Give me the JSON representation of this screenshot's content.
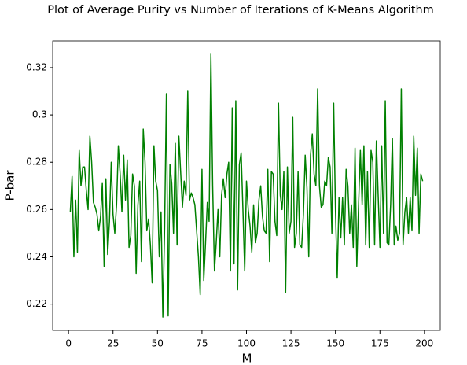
{
  "chart_data": {
    "type": "line",
    "title": "Plot of Average Purity vs Number of Iterations of K-Means Algorithm",
    "x_label": "M",
    "y_label": "P-bar",
    "x": [
      1,
      2,
      3,
      4,
      5,
      6,
      7,
      8,
      9,
      10,
      11,
      12,
      13,
      14,
      15,
      16,
      17,
      18,
      19,
      20,
      21,
      22,
      23,
      24,
      25,
      26,
      27,
      28,
      29,
      30,
      31,
      32,
      33,
      34,
      35,
      36,
      37,
      38,
      39,
      40,
      41,
      42,
      43,
      44,
      45,
      46,
      47,
      48,
      49,
      50,
      51,
      52,
      53,
      54,
      55,
      56,
      57,
      58,
      59,
      60,
      61,
      62,
      63,
      64,
      65,
      66,
      67,
      68,
      69,
      70,
      71,
      72,
      73,
      74,
      75,
      76,
      77,
      78,
      79,
      80,
      81,
      82,
      83,
      84,
      85,
      86,
      87,
      88,
      89,
      90,
      91,
      92,
      93,
      94,
      95,
      96,
      97,
      98,
      99,
      100,
      101,
      102,
      103,
      104,
      105,
      106,
      107,
      108,
      109,
      110,
      111,
      112,
      113,
      114,
      115,
      116,
      117,
      118,
      119,
      120,
      121,
      122,
      123,
      124,
      125,
      126,
      127,
      128,
      129,
      130,
      131,
      132,
      133,
      134,
      135,
      136,
      137,
      138,
      139,
      140,
      141,
      142,
      143,
      144,
      145,
      146,
      147,
      148,
      149,
      150,
      151,
      152,
      153,
      154,
      155,
      156,
      157,
      158,
      159,
      160,
      161,
      162,
      163,
      164,
      165,
      166,
      167,
      168,
      169,
      170,
      171,
      172,
      173,
      174,
      175,
      176,
      177,
      178,
      179,
      180,
      181,
      182,
      183,
      184,
      185,
      186,
      187,
      188,
      189,
      190,
      191,
      192,
      193,
      194,
      195,
      196,
      197,
      198,
      199
    ],
    "series": [
      {
        "name": "P-bar",
        "color": "#008000",
        "values": [
          0.259,
          0.274,
          0.24,
          0.264,
          0.242,
          0.285,
          0.27,
          0.278,
          0.278,
          0.268,
          0.26,
          0.291,
          0.28,
          0.263,
          0.261,
          0.258,
          0.251,
          0.257,
          0.271,
          0.236,
          0.273,
          0.241,
          0.255,
          0.28,
          0.258,
          0.25,
          0.262,
          0.287,
          0.275,
          0.259,
          0.283,
          0.264,
          0.281,
          0.244,
          0.249,
          0.275,
          0.27,
          0.233,
          0.262,
          0.272,
          0.238,
          0.294,
          0.28,
          0.251,
          0.256,
          0.245,
          0.229,
          0.287,
          0.272,
          0.268,
          0.24,
          0.259,
          0.2145,
          0.252,
          0.309,
          0.215,
          0.279,
          0.271,
          0.25,
          0.288,
          0.245,
          0.291,
          0.276,
          0.261,
          0.272,
          0.266,
          0.31,
          0.264,
          0.267,
          0.265,
          0.262,
          0.251,
          0.24,
          0.224,
          0.277,
          0.23,
          0.246,
          0.263,
          0.255,
          0.3257,
          0.27,
          0.234,
          0.246,
          0.26,
          0.24,
          0.266,
          0.273,
          0.265,
          0.275,
          0.28,
          0.234,
          0.303,
          0.237,
          0.306,
          0.226,
          0.279,
          0.284,
          0.26,
          0.234,
          0.272,
          0.26,
          0.253,
          0.242,
          0.262,
          0.246,
          0.25,
          0.264,
          0.27,
          0.257,
          0.251,
          0.25,
          0.277,
          0.238,
          0.276,
          0.275,
          0.255,
          0.249,
          0.305,
          0.266,
          0.26,
          0.276,
          0.225,
          0.278,
          0.25,
          0.255,
          0.299,
          0.244,
          0.25,
          0.276,
          0.245,
          0.244,
          0.258,
          0.283,
          0.269,
          0.24,
          0.283,
          0.292,
          0.275,
          0.27,
          0.311,
          0.27,
          0.261,
          0.262,
          0.272,
          0.27,
          0.282,
          0.278,
          0.25,
          0.305,
          0.26,
          0.231,
          0.265,
          0.248,
          0.265,
          0.245,
          0.277,
          0.27,
          0.25,
          0.262,
          0.244,
          0.286,
          0.236,
          0.262,
          0.285,
          0.262,
          0.287,
          0.245,
          0.276,
          0.244,
          0.285,
          0.28,
          0.245,
          0.289,
          0.266,
          0.244,
          0.287,
          0.25,
          0.306,
          0.246,
          0.245,
          0.262,
          0.29,
          0.245,
          0.253,
          0.247,
          0.25,
          0.311,
          0.245,
          0.259,
          0.265,
          0.25,
          0.265,
          0.251,
          0.291,
          0.266,
          0.286,
          0.25,
          0.275,
          0.272
        ]
      }
    ],
    "xlim": [
      -8.9,
      208.9
    ],
    "xticks": [
      0,
      25,
      50,
      75,
      100,
      125,
      150,
      175,
      200
    ],
    "ylim": [
      0.2089,
      0.3313
    ],
    "yticks": [
      0.22,
      0.24,
      0.26,
      0.28,
      0.3,
      0.32
    ]
  }
}
